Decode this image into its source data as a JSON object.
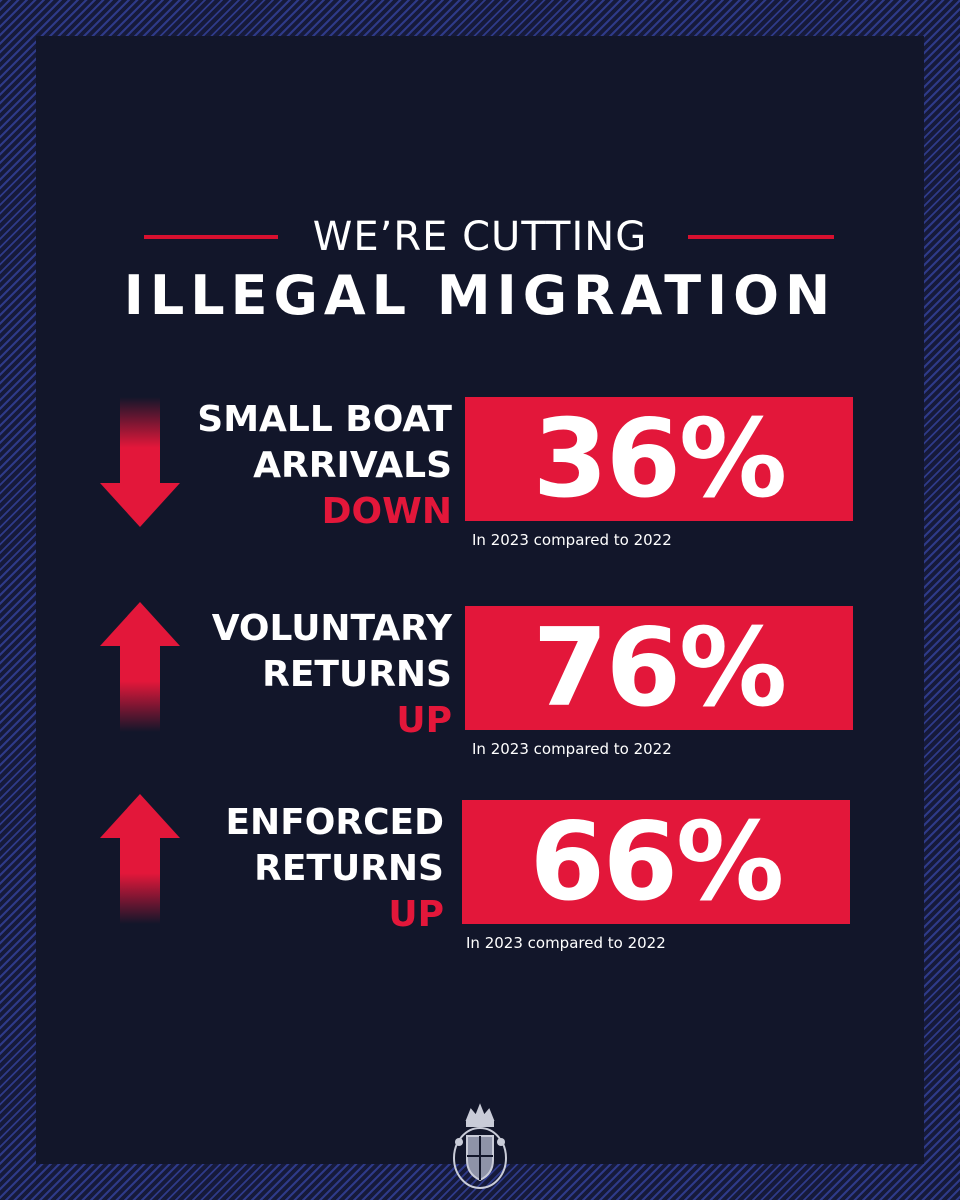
{
  "header": {
    "kicker": "WE’RE CUTTING",
    "headline": "ILLEGAL MIGRATION"
  },
  "stats": [
    {
      "line1": "SMALL BOAT",
      "line2": "ARRIVALS",
      "direction": "DOWN",
      "arrow": "down-arrow-icon",
      "value": "36%",
      "note": "In 2023 compared to 2022"
    },
    {
      "line1": "VOLUNTARY",
      "line2": "RETURNS",
      "direction": "UP",
      "arrow": "up-arrow-icon",
      "value": "76%",
      "note": "In 2023 compared to 2022"
    },
    {
      "line1": "ENFORCED",
      "line2": "RETURNS",
      "direction": "UP",
      "arrow": "up-arrow-icon",
      "value": "66%",
      "note": "In 2023 compared to 2022"
    }
  ],
  "colors": {
    "background": "#12162a",
    "accent": "#e3173a",
    "text": "#ffffff",
    "border_stripe": "#2e3a88"
  },
  "footer": {
    "emblem": "royal-crest-icon"
  }
}
